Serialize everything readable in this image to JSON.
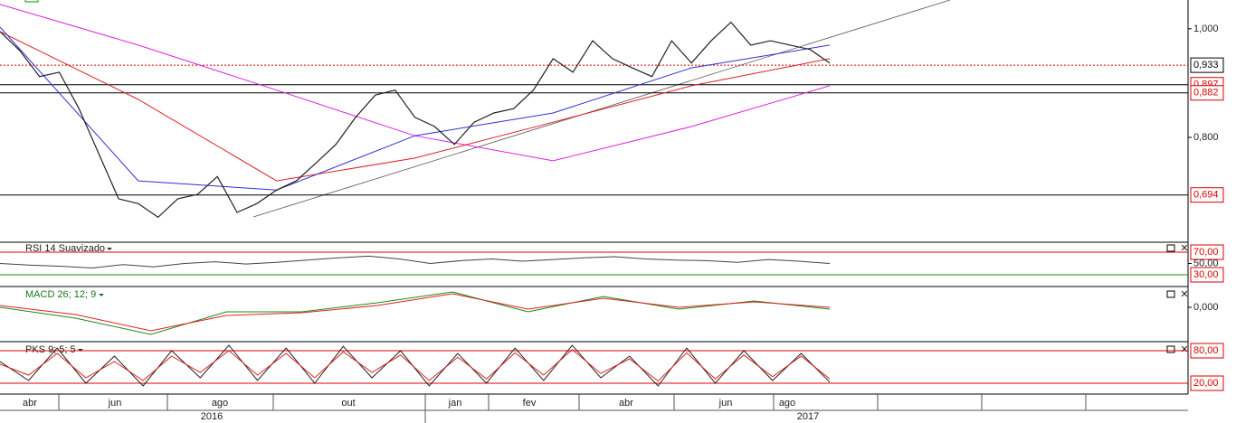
{
  "price_panel": {
    "ylim": [
      0.607,
      1.053
    ],
    "yticks": [
      {
        "value": 1.0,
        "label": "1,000"
      },
      {
        "value": 0.8,
        "label": "0,800"
      }
    ],
    "levels": [
      {
        "value": 0.933,
        "label": "0,933"
      },
      {
        "value": 0.897,
        "label": "0,897"
      },
      {
        "value": 0.882,
        "label": "0,882"
      },
      {
        "value": 0.694,
        "label": "0,694"
      }
    ],
    "close": [
      0.995,
      0.96,
      0.912,
      0.92,
      0.853,
      0.77,
      0.687,
      0.678,
      0.653,
      0.687,
      0.695,
      0.728,
      0.662,
      0.678,
      0.703,
      0.72,
      0.753,
      0.787,
      0.837,
      0.878,
      0.887,
      0.837,
      0.82,
      0.787,
      0.828,
      0.845,
      0.853,
      0.887,
      0.945,
      0.92,
      0.978,
      0.945,
      0.928,
      0.912,
      0.978,
      0.937,
      0.978,
      1.012,
      0.97,
      0.978,
      0.97,
      0.962,
      0.937
    ],
    "ma_magenta": [
      1.045,
      0.97,
      0.887,
      0.803,
      0.757,
      0.82,
      0.895
    ],
    "ema_red": [
      0.995,
      0.87,
      0.72,
      0.762,
      0.828,
      0.895,
      0.945
    ],
    "sma_blue": [
      1.003,
      0.72,
      0.703,
      0.803,
      0.845,
      0.928,
      0.97
    ]
  },
  "rsi_panel": {
    "label": "RSI 14 Suavizado",
    "ylim": [
      9.2,
      87.6
    ],
    "yticks": [
      {
        "value": 70,
        "label": "70,00"
      },
      {
        "value": 50,
        "label": "50,00"
      },
      {
        "value": 30,
        "label": "30,00"
      }
    ],
    "values": [
      50,
      47,
      45,
      42,
      48,
      44,
      50,
      53,
      49,
      52,
      56,
      60,
      63,
      58,
      50,
      55,
      58,
      54,
      57,
      60,
      62,
      58,
      56,
      55,
      52,
      57,
      54,
      50
    ]
  },
  "macd_panel": {
    "label": "MACD 26; 12; 9",
    "ylim": [
      -0.038,
      0.023
    ],
    "yticks": [
      {
        "value": 0,
        "label": "0,000"
      }
    ],
    "macd": [
      0,
      -0.012,
      -0.03,
      -0.005,
      -0.005,
      0.005,
      0.017,
      -0.005,
      0.012,
      -0.002,
      0.007,
      -0.002
    ],
    "signal": [
      0.002,
      -0.008,
      -0.026,
      -0.009,
      -0.006,
      0.002,
      0.015,
      -0.002,
      0.01,
      0,
      0.006,
      0
    ]
  },
  "pks_panel": {
    "label": "PKS 9; 5; 5",
    "ylim": [
      0,
      96.7
    ],
    "yticks": [
      {
        "value": 80,
        "label": "80,00"
      },
      {
        "value": 20,
        "label": "20,00"
      }
    ],
    "k": [
      60,
      25,
      85,
      20,
      70,
      15,
      80,
      30,
      90,
      25,
      85,
      20,
      88,
      30,
      80,
      15,
      75,
      20,
      85,
      25,
      90,
      30,
      70,
      15,
      85,
      20,
      80,
      25,
      75,
      22
    ],
    "d": [
      55,
      35,
      75,
      30,
      60,
      25,
      70,
      40,
      80,
      35,
      75,
      30,
      78,
      40,
      72,
      25,
      68,
      28,
      76,
      35,
      82,
      38,
      65,
      24,
      76,
      28,
      72,
      32,
      70,
      28
    ]
  },
  "time_axis": {
    "months": [
      "abr",
      "jun",
      "ago",
      "out",
      "jan",
      "fev",
      "abr",
      "jun",
      "ago"
    ],
    "years": [
      "2016",
      "2017"
    ]
  }
}
